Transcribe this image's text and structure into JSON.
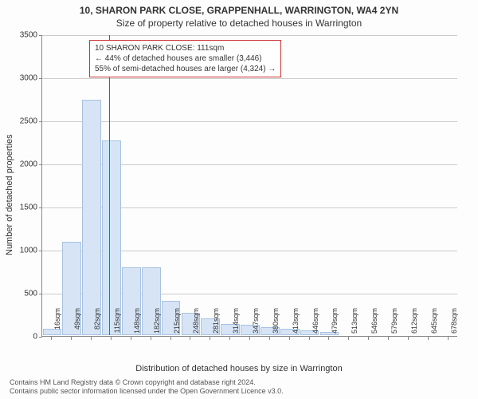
{
  "header": {
    "address": "10, SHARON PARK CLOSE, GRAPPENHALL, WARRINGTON, WA4 2YN",
    "subtitle": "Size of property relative to detached houses in Warrington"
  },
  "chart": {
    "type": "histogram",
    "y_label": "Number of detached properties",
    "x_label": "Distribution of detached houses by size in Warrington",
    "ylim": [
      0,
      3500
    ],
    "ytick_step": 500,
    "y_ticks": [
      0,
      500,
      1000,
      1500,
      2000,
      2500,
      3000,
      3500
    ],
    "x_ticks": [
      "16sqm",
      "49sqm",
      "82sqm",
      "115sqm",
      "148sqm",
      "182sqm",
      "215sqm",
      "248sqm",
      "281sqm",
      "314sqm",
      "347sqm",
      "380sqm",
      "413sqm",
      "446sqm",
      "479sqm",
      "513sqm",
      "546sqm",
      "579sqm",
      "612sqm",
      "645sqm",
      "678sqm"
    ],
    "bars": {
      "values": [
        70,
        1080,
        2730,
        2260,
        790,
        790,
        400,
        260,
        190,
        130,
        120,
        90,
        70,
        55,
        40,
        0,
        0,
        0,
        0,
        0,
        0
      ],
      "fill_color": "#d6e4f5",
      "stroke_color": "#a8c2e0",
      "bar_width_frac": 0.95
    },
    "reference_line": {
      "x_sqm": 111,
      "color": "#cc3333"
    },
    "grid_color": "#cccccc",
    "axis_color": "#888888",
    "background_color": "#fdfdfd",
    "font_family": "Arial",
    "label_fontsize": 11,
    "tick_fontsize": 10
  },
  "callout": {
    "line1": "10 SHARON PARK CLOSE: 111sqm",
    "line2": "← 44% of detached houses are smaller (3,446)",
    "line3": "55% of semi-detached houses are larger (4,324) →",
    "border_color": "#cc3333",
    "text_color": "#333333"
  },
  "footer": {
    "line1": "Contains HM Land Registry data © Crown copyright and database right 2024.",
    "line2": "Contains public sector information licensed under the Open Government Licence v3.0."
  }
}
